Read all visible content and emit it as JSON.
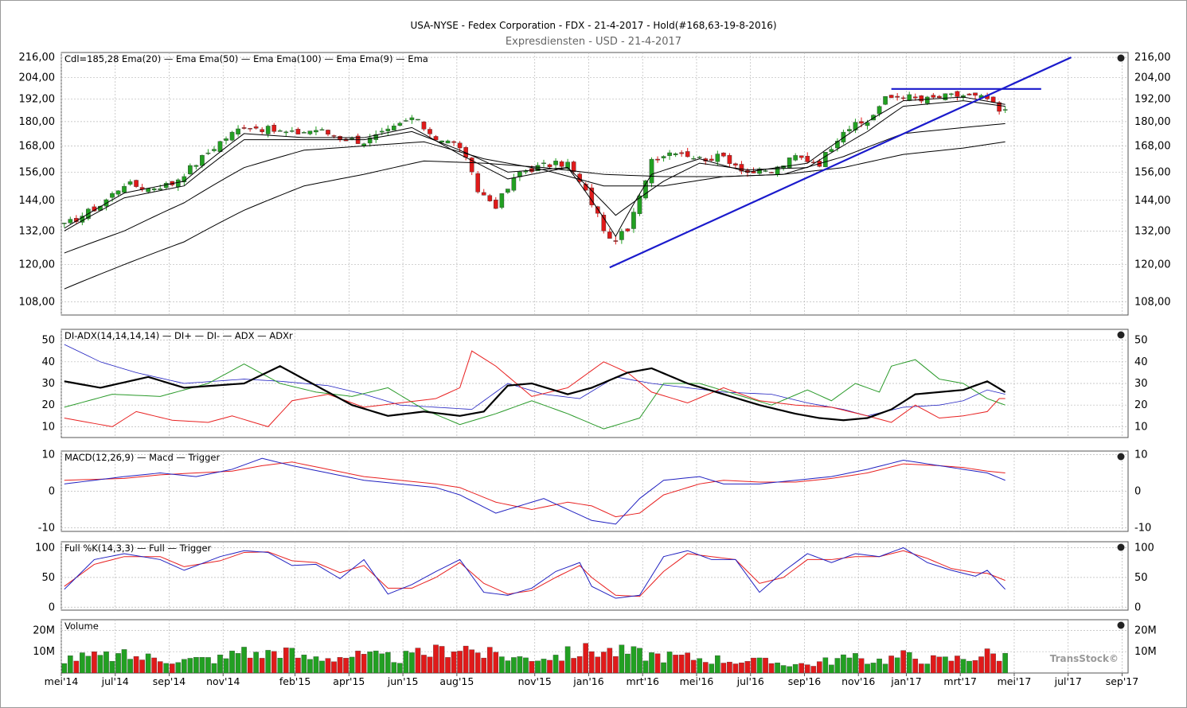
{
  "title": "USA-NYSE - Fedex Corporation - FDX - 21-4-2017 - Hold(#168,63-19-8-2016)",
  "subtitle": "Expresdiensten - USD - 21-4-2017",
  "watermark": "TransStock©",
  "colors": {
    "up": "#22a022",
    "down": "#e01a1a",
    "green": "#2a9a2a",
    "red": "#e82020",
    "blue": "#2020c0",
    "trend": "#1a1acc",
    "grid": "#b8b8b8"
  },
  "x_axis": {
    "ticks": [
      "mei'14",
      "jul'14",
      "sep'14",
      "nov'14",
      "feb'15",
      "apr'15",
      "jun'15",
      "aug'15",
      "nov'15",
      "jan'16",
      "mrt'16",
      "mei'16",
      "jul'16",
      "sep'16",
      "nov'16",
      "jan'17",
      "mrt'17",
      "mei'17",
      "jul'17",
      "sep'17"
    ],
    "tick_index": [
      0,
      9,
      18,
      27,
      39,
      48,
      57,
      66,
      79,
      88,
      97,
      106,
      115,
      124,
      133,
      141,
      150,
      159,
      168,
      177
    ],
    "bars_total": 178
  },
  "panels": {
    "price": {
      "legend": "Cdl=185,28  Ema(20)  — Ema  Ema(50)  — Ema  Ema(100)  — Ema  Ema(9)  — Ema",
      "ticks": [
        "216,00",
        "204,00",
        "192,00",
        "180,00",
        "168,00",
        "156,00",
        "144,00",
        "132,00",
        "120,00",
        "108,00"
      ],
      "tick_values": [
        216,
        204,
        192,
        180,
        168,
        156,
        144,
        132,
        120,
        108
      ],
      "ylim": [
        104,
        219
      ],
      "scale": "log"
    },
    "adx": {
      "legend": "DI-ADX(14,14,14,14)  — DI+  — DI-  — ADX  — ADXr",
      "ticks": [
        "50",
        "40",
        "30",
        "20",
        "10"
      ],
      "tick_values": [
        50,
        40,
        30,
        20,
        10
      ],
      "ylim": [
        5,
        55
      ]
    },
    "macd": {
      "legend": "MACD(12,26,9)  — Macd  — Trigger",
      "ticks": [
        "10",
        "0",
        "-10"
      ],
      "tick_values": [
        10,
        0,
        -10
      ],
      "ylim": [
        -11,
        11
      ]
    },
    "stoch": {
      "legend": "Full %K(14,3,3)  — Full  — Trigger",
      "ticks": [
        "100",
        "50",
        "0"
      ],
      "tick_values": [
        100,
        50,
        0
      ],
      "ylim": [
        -5,
        110
      ]
    },
    "volume": {
      "legend": "Volume",
      "ticks": [
        "20M",
        "10M"
      ],
      "tick_values": [
        20,
        10
      ],
      "ylim": [
        0,
        25
      ]
    }
  },
  "chart_data": {
    "type": "candlestick",
    "bars_index": [
      0,
      177
    ],
    "close_waypoints": [
      [
        0,
        134
      ],
      [
        6,
        142
      ],
      [
        10,
        151
      ],
      [
        14,
        149
      ],
      [
        18,
        151
      ],
      [
        22,
        160
      ],
      [
        26,
        170
      ],
      [
        30,
        178
      ],
      [
        34,
        176
      ],
      [
        38,
        174
      ],
      [
        42,
        176
      ],
      [
        46,
        172
      ],
      [
        50,
        170
      ],
      [
        54,
        175
      ],
      [
        58,
        182
      ],
      [
        62,
        172
      ],
      [
        66,
        168
      ],
      [
        69,
        148
      ],
      [
        72,
        142
      ],
      [
        76,
        156
      ],
      [
        80,
        159
      ],
      [
        84,
        160
      ],
      [
        88,
        143
      ],
      [
        91,
        128
      ],
      [
        94,
        132
      ],
      [
        96,
        145
      ],
      [
        98,
        162
      ],
      [
        102,
        166
      ],
      [
        106,
        162
      ],
      [
        110,
        163
      ],
      [
        114,
        156
      ],
      [
        118,
        156
      ],
      [
        122,
        163
      ],
      [
        126,
        160
      ],
      [
        130,
        176
      ],
      [
        134,
        180
      ],
      [
        137,
        192
      ],
      [
        140,
        194
      ],
      [
        143,
        191
      ],
      [
        146,
        193
      ],
      [
        150,
        194
      ],
      [
        154,
        192
      ],
      [
        156,
        185
      ],
      [
        157,
        185.28
      ]
    ],
    "ema9_waypoints": [
      [
        0,
        133
      ],
      [
        10,
        147
      ],
      [
        20,
        152
      ],
      [
        30,
        174
      ],
      [
        40,
        172
      ],
      [
        50,
        172
      ],
      [
        58,
        177
      ],
      [
        66,
        164
      ],
      [
        74,
        153
      ],
      [
        84,
        158
      ],
      [
        92,
        130
      ],
      [
        98,
        155
      ],
      [
        106,
        162
      ],
      [
        114,
        156
      ],
      [
        124,
        160
      ],
      [
        134,
        180
      ],
      [
        140,
        191
      ],
      [
        150,
        193
      ],
      [
        157,
        189
      ]
    ],
    "ema20_waypoints": [
      [
        0,
        132
      ],
      [
        10,
        145
      ],
      [
        20,
        150
      ],
      [
        30,
        171
      ],
      [
        40,
        171
      ],
      [
        50,
        171
      ],
      [
        58,
        175
      ],
      [
        66,
        166
      ],
      [
        74,
        156
      ],
      [
        84,
        158
      ],
      [
        92,
        138
      ],
      [
        100,
        152
      ],
      [
        106,
        160
      ],
      [
        114,
        157
      ],
      [
        124,
        158
      ],
      [
        134,
        175
      ],
      [
        140,
        188
      ],
      [
        150,
        191
      ],
      [
        157,
        188
      ]
    ],
    "ema50_waypoints": [
      [
        0,
        124
      ],
      [
        10,
        132
      ],
      [
        20,
        143
      ],
      [
        30,
        158
      ],
      [
        40,
        166
      ],
      [
        50,
        168
      ],
      [
        60,
        170
      ],
      [
        70,
        162
      ],
      [
        80,
        157
      ],
      [
        90,
        150
      ],
      [
        100,
        150
      ],
      [
        110,
        154
      ],
      [
        120,
        155
      ],
      [
        130,
        163
      ],
      [
        140,
        174
      ],
      [
        150,
        177
      ],
      [
        157,
        179
      ]
    ],
    "ema100_waypoints": [
      [
        0,
        112
      ],
      [
        10,
        120
      ],
      [
        20,
        128
      ],
      [
        30,
        140
      ],
      [
        40,
        150
      ],
      [
        50,
        155
      ],
      [
        60,
        161
      ],
      [
        70,
        160
      ],
      [
        80,
        158
      ],
      [
        90,
        155
      ],
      [
        100,
        154
      ],
      [
        110,
        154
      ],
      [
        120,
        155
      ],
      [
        130,
        158
      ],
      [
        140,
        164
      ],
      [
        150,
        167
      ],
      [
        157,
        170
      ]
    ],
    "trendlines": [
      {
        "from": [
          91,
          119
        ],
        "to": [
          168,
          216
        ]
      },
      {
        "from": [
          138,
          197.5
        ],
        "to": [
          163,
          197.5
        ]
      }
    ],
    "di_plus_waypoints": [
      [
        0,
        19
      ],
      [
        8,
        25
      ],
      [
        16,
        24
      ],
      [
        24,
        30
      ],
      [
        30,
        39
      ],
      [
        36,
        30
      ],
      [
        42,
        26
      ],
      [
        48,
        24
      ],
      [
        54,
        28
      ],
      [
        60,
        18
      ],
      [
        66,
        11
      ],
      [
        72,
        16
      ],
      [
        78,
        22
      ],
      [
        84,
        16
      ],
      [
        90,
        9
      ],
      [
        96,
        14
      ],
      [
        100,
        30
      ],
      [
        106,
        30
      ],
      [
        112,
        25
      ],
      [
        118,
        20
      ],
      [
        124,
        27
      ],
      [
        128,
        22
      ],
      [
        132,
        30
      ],
      [
        136,
        26
      ],
      [
        138,
        38
      ],
      [
        142,
        41
      ],
      [
        146,
        32
      ],
      [
        150,
        30
      ],
      [
        154,
        23
      ],
      [
        157,
        20
      ]
    ],
    "di_minus_waypoints": [
      [
        0,
        14
      ],
      [
        8,
        10
      ],
      [
        12,
        17
      ],
      [
        18,
        13
      ],
      [
        24,
        12
      ],
      [
        28,
        15
      ],
      [
        34,
        10
      ],
      [
        38,
        22
      ],
      [
        44,
        25
      ],
      [
        50,
        19
      ],
      [
        56,
        21
      ],
      [
        62,
        23
      ],
      [
        66,
        28
      ],
      [
        68,
        45
      ],
      [
        72,
        38
      ],
      [
        78,
        24
      ],
      [
        84,
        28
      ],
      [
        88,
        36
      ],
      [
        90,
        40
      ],
      [
        94,
        35
      ],
      [
        98,
        26
      ],
      [
        104,
        21
      ],
      [
        110,
        28
      ],
      [
        116,
        22
      ],
      [
        122,
        20
      ],
      [
        128,
        19
      ],
      [
        134,
        15
      ],
      [
        138,
        12
      ],
      [
        142,
        20
      ],
      [
        146,
        14
      ],
      [
        150,
        15
      ],
      [
        154,
        17
      ],
      [
        156,
        23
      ],
      [
        157,
        23
      ]
    ],
    "adx_waypoints": [
      [
        0,
        31
      ],
      [
        6,
        28
      ],
      [
        14,
        33
      ],
      [
        20,
        28
      ],
      [
        30,
        30
      ],
      [
        36,
        38
      ],
      [
        42,
        29
      ],
      [
        48,
        20
      ],
      [
        54,
        15
      ],
      [
        60,
        17
      ],
      [
        66,
        15
      ],
      [
        70,
        17
      ],
      [
        74,
        29
      ],
      [
        78,
        30
      ],
      [
        84,
        25
      ],
      [
        88,
        28
      ],
      [
        94,
        35
      ],
      [
        98,
        37
      ],
      [
        104,
        30
      ],
      [
        110,
        25
      ],
      [
        116,
        20
      ],
      [
        122,
        16
      ],
      [
        126,
        14
      ],
      [
        130,
        13
      ],
      [
        134,
        14
      ],
      [
        138,
        18
      ],
      [
        142,
        25
      ],
      [
        146,
        26
      ],
      [
        150,
        27
      ],
      [
        154,
        31
      ],
      [
        157,
        26
      ]
    ],
    "adxr_waypoints": [
      [
        0,
        48
      ],
      [
        6,
        40
      ],
      [
        12,
        35
      ],
      [
        20,
        30
      ],
      [
        30,
        32
      ],
      [
        36,
        31
      ],
      [
        44,
        29
      ],
      [
        50,
        25
      ],
      [
        56,
        20
      ],
      [
        62,
        19
      ],
      [
        68,
        18
      ],
      [
        74,
        30
      ],
      [
        80,
        25
      ],
      [
        86,
        23
      ],
      [
        92,
        33
      ],
      [
        98,
        30
      ],
      [
        104,
        28
      ],
      [
        110,
        26
      ],
      [
        118,
        25
      ],
      [
        124,
        21
      ],
      [
        130,
        18
      ],
      [
        134,
        15
      ],
      [
        140,
        19
      ],
      [
        146,
        20
      ],
      [
        150,
        22
      ],
      [
        154,
        27
      ],
      [
        157,
        25
      ]
    ],
    "macd_waypoints": [
      [
        0,
        2
      ],
      [
        10,
        4
      ],
      [
        16,
        5
      ],
      [
        22,
        4
      ],
      [
        28,
        6
      ],
      [
        33,
        9
      ],
      [
        38,
        7
      ],
      [
        44,
        5
      ],
      [
        50,
        3
      ],
      [
        56,
        2
      ],
      [
        62,
        1
      ],
      [
        66,
        -1
      ],
      [
        72,
        -6
      ],
      [
        76,
        -4
      ],
      [
        80,
        -2
      ],
      [
        84,
        -5
      ],
      [
        88,
        -8
      ],
      [
        92,
        -9
      ],
      [
        96,
        -2
      ],
      [
        100,
        3
      ],
      [
        106,
        4
      ],
      [
        110,
        2
      ],
      [
        116,
        2
      ],
      [
        122,
        3
      ],
      [
        128,
        4
      ],
      [
        134,
        6
      ],
      [
        140,
        8.5
      ],
      [
        146,
        7
      ],
      [
        150,
        6
      ],
      [
        154,
        5
      ],
      [
        157,
        3
      ]
    ],
    "trigger_waypoints": [
      [
        0,
        3
      ],
      [
        10,
        3.5
      ],
      [
        16,
        4.5
      ],
      [
        22,
        5
      ],
      [
        28,
        5.5
      ],
      [
        33,
        7
      ],
      [
        38,
        8
      ],
      [
        44,
        6
      ],
      [
        50,
        4
      ],
      [
        56,
        3
      ],
      [
        62,
        2
      ],
      [
        66,
        1
      ],
      [
        72,
        -3
      ],
      [
        78,
        -5
      ],
      [
        84,
        -3
      ],
      [
        88,
        -4
      ],
      [
        92,
        -7
      ],
      [
        96,
        -6
      ],
      [
        100,
        -1
      ],
      [
        106,
        2
      ],
      [
        110,
        3
      ],
      [
        116,
        2.5
      ],
      [
        122,
        2.5
      ],
      [
        128,
        3.5
      ],
      [
        134,
        5
      ],
      [
        140,
        7.5
      ],
      [
        146,
        7
      ],
      [
        150,
        6.5
      ],
      [
        154,
        5.5
      ],
      [
        157,
        5
      ]
    ],
    "stoch_full_waypoints": [
      [
        0,
        30
      ],
      [
        5,
        80
      ],
      [
        10,
        90
      ],
      [
        16,
        80
      ],
      [
        20,
        62
      ],
      [
        26,
        85
      ],
      [
        30,
        95
      ],
      [
        34,
        92
      ],
      [
        38,
        70
      ],
      [
        42,
        72
      ],
      [
        46,
        48
      ],
      [
        50,
        80
      ],
      [
        54,
        22
      ],
      [
        58,
        38
      ],
      [
        62,
        60
      ],
      [
        66,
        80
      ],
      [
        70,
        25
      ],
      [
        74,
        20
      ],
      [
        78,
        32
      ],
      [
        82,
        60
      ],
      [
        86,
        75
      ],
      [
        88,
        35
      ],
      [
        92,
        15
      ],
      [
        96,
        20
      ],
      [
        100,
        85
      ],
      [
        104,
        95
      ],
      [
        108,
        80
      ],
      [
        112,
        80
      ],
      [
        116,
        25
      ],
      [
        120,
        60
      ],
      [
        124,
        90
      ],
      [
        128,
        75
      ],
      [
        132,
        90
      ],
      [
        136,
        85
      ],
      [
        140,
        100
      ],
      [
        144,
        75
      ],
      [
        148,
        62
      ],
      [
        152,
        52
      ],
      [
        154,
        62
      ],
      [
        157,
        30
      ]
    ],
    "stoch_trigger_waypoints": [
      [
        0,
        35
      ],
      [
        5,
        72
      ],
      [
        10,
        85
      ],
      [
        16,
        85
      ],
      [
        20,
        68
      ],
      [
        26,
        78
      ],
      [
        30,
        92
      ],
      [
        34,
        93
      ],
      [
        38,
        78
      ],
      [
        42,
        75
      ],
      [
        46,
        58
      ],
      [
        50,
        70
      ],
      [
        54,
        32
      ],
      [
        58,
        32
      ],
      [
        62,
        50
      ],
      [
        66,
        75
      ],
      [
        70,
        40
      ],
      [
        74,
        22
      ],
      [
        78,
        28
      ],
      [
        82,
        50
      ],
      [
        86,
        70
      ],
      [
        88,
        50
      ],
      [
        92,
        20
      ],
      [
        96,
        18
      ],
      [
        100,
        60
      ],
      [
        104,
        90
      ],
      [
        108,
        85
      ],
      [
        112,
        80
      ],
      [
        116,
        40
      ],
      [
        120,
        50
      ],
      [
        124,
        80
      ],
      [
        128,
        80
      ],
      [
        132,
        85
      ],
      [
        136,
        85
      ],
      [
        140,
        95
      ],
      [
        144,
        82
      ],
      [
        148,
        65
      ],
      [
        152,
        58
      ],
      [
        154,
        57
      ],
      [
        157,
        45
      ]
    ],
    "volume_waypoints": [
      [
        0,
        7
      ],
      [
        10,
        8
      ],
      [
        20,
        6
      ],
      [
        27,
        7
      ],
      [
        30,
        12
      ],
      [
        32,
        8
      ],
      [
        36,
        11
      ],
      [
        40,
        7
      ],
      [
        48,
        8
      ],
      [
        56,
        7
      ],
      [
        62,
        10
      ],
      [
        66,
        13
      ],
      [
        70,
        9
      ],
      [
        76,
        7
      ],
      [
        82,
        8
      ],
      [
        88,
        11
      ],
      [
        92,
        10
      ],
      [
        96,
        9
      ],
      [
        100,
        8
      ],
      [
        106,
        7
      ],
      [
        112,
        6
      ],
      [
        118,
        5
      ],
      [
        124,
        4
      ],
      [
        130,
        7
      ],
      [
        136,
        6
      ],
      [
        140,
        8
      ],
      [
        146,
        6
      ],
      [
        150,
        7
      ],
      [
        154,
        9
      ],
      [
        157,
        8
      ]
    ]
  }
}
